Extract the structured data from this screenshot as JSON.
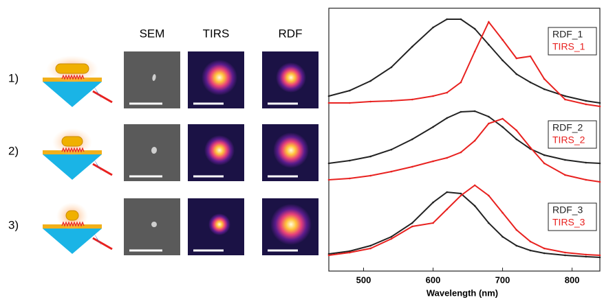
{
  "figure": {
    "column_headers": [
      "SEM",
      "TIRS",
      "RDF"
    ],
    "row_labels": [
      "1)",
      "2)",
      "3)"
    ]
  },
  "chart_data": {
    "type": "line",
    "x_label": "Wavelength (nm)",
    "x": [
      450,
      480,
      510,
      540,
      570,
      600,
      620,
      640,
      660,
      680,
      700,
      720,
      740,
      760,
      790,
      820,
      840
    ],
    "xlim": [
      450,
      840
    ],
    "xticks": [
      500,
      600,
      700,
      800
    ],
    "ylim": [
      0,
      383
    ],
    "series": [
      {
        "name": "RDF_1",
        "color": "#222222",
        "values": [
          255,
          263,
          277,
          297,
          327,
          355,
          367,
          367,
          353,
          330,
          307,
          287,
          275,
          265,
          255,
          248,
          245
        ]
      },
      {
        "name": "TIRS_1",
        "color": "#e8211f",
        "values": [
          245,
          245,
          247,
          248,
          250,
          255,
          260,
          275,
          320,
          363,
          337,
          310,
          313,
          280,
          250,
          243,
          240
        ]
      },
      {
        "name": "RDF_2",
        "color": "#222222",
        "values": [
          157,
          161,
          167,
          177,
          192,
          210,
          223,
          232,
          233,
          225,
          210,
          192,
          178,
          169,
          162,
          158,
          157
        ]
      },
      {
        "name": "TIRS_2",
        "color": "#e8211f",
        "values": [
          133,
          135,
          139,
          145,
          152,
          160,
          165,
          173,
          190,
          215,
          222,
          205,
          180,
          157,
          140,
          133,
          130
        ]
      },
      {
        "name": "RDF_3",
        "color": "#222222",
        "values": [
          25,
          29,
          37,
          50,
          70,
          100,
          115,
          113,
          95,
          70,
          50,
          37,
          30,
          26,
          23,
          21,
          20
        ]
      },
      {
        "name": "TIRS_3",
        "color": "#e8211f",
        "values": [
          23,
          27,
          33,
          47,
          65,
          70,
          90,
          110,
          125,
          110,
          85,
          60,
          43,
          33,
          27,
          24,
          23
        ]
      }
    ]
  }
}
